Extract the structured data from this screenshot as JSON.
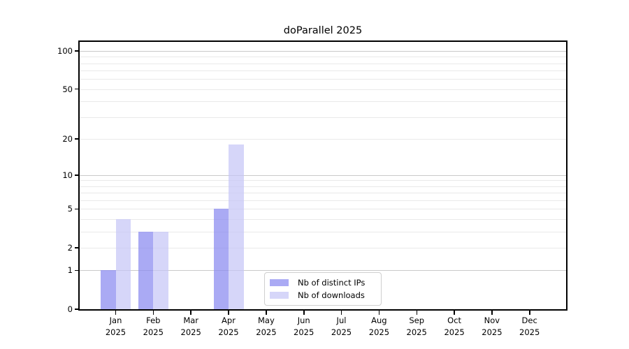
{
  "figure": {
    "background": "#ffffff"
  },
  "chart_data": {
    "type": "bar",
    "title": "doParallel 2025",
    "categories": [
      "Jan",
      "Feb",
      "Mar",
      "Apr",
      "May",
      "Jun",
      "Jul",
      "Aug",
      "Sep",
      "Oct",
      "Nov",
      "Dec"
    ],
    "category_year": "2025",
    "series": [
      {
        "name": "Nb of distinct IPs",
        "color": "rgba(137,137,240,0.72)",
        "values": [
          1,
          3,
          0,
          5,
          0,
          0,
          0,
          0,
          0,
          0,
          0,
          0
        ]
      },
      {
        "name": "Nb of downloads",
        "color": "rgba(196,196,246,0.70)",
        "values": [
          4,
          3,
          0,
          18,
          0,
          0,
          0,
          0,
          0,
          0,
          0,
          0
        ]
      }
    ],
    "xlabel": "",
    "ylabel": "",
    "y_scale": "log1p",
    "ylim": [
      0,
      117
    ],
    "y_tick_labels": [
      0,
      1,
      2,
      5,
      10,
      20,
      50,
      100
    ],
    "y_major_gridlines": [
      1,
      10,
      100
    ],
    "y_minor_gridlines": [
      2,
      3,
      4,
      5,
      6,
      7,
      8,
      9,
      20,
      30,
      40,
      50,
      60,
      70,
      80,
      90
    ],
    "grid": "horizontal-only",
    "legend_position": "lower-center",
    "colors": {
      "major_grid": "#c9c9c9",
      "minor_grid": "#e9e9e9",
      "axis": "#000000"
    }
  }
}
